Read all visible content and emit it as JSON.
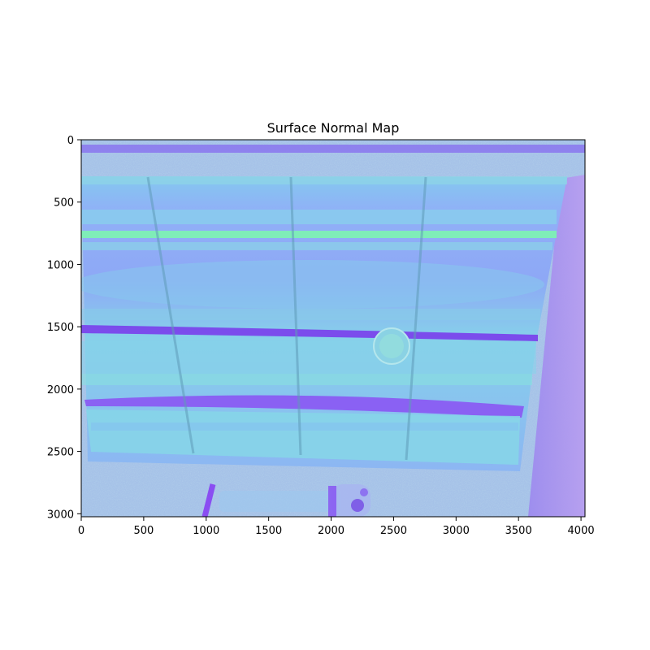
{
  "figure": {
    "title": "Surface Normal Map",
    "image_width_units": 4032,
    "image_height_units": 3024
  },
  "axes": {
    "x_ticks": [
      {
        "value": 0,
        "label": "0"
      },
      {
        "value": 500,
        "label": "500"
      },
      {
        "value": 1000,
        "label": "1000"
      },
      {
        "value": 1500,
        "label": "1500"
      },
      {
        "value": 2000,
        "label": "2000"
      },
      {
        "value": 2500,
        "label": "2500"
      },
      {
        "value": 3000,
        "label": "3000"
      },
      {
        "value": 3500,
        "label": "3500"
      },
      {
        "value": 4000,
        "label": "4000"
      }
    ],
    "y_ticks": [
      {
        "value": 0,
        "label": "0"
      },
      {
        "value": 500,
        "label": "500"
      },
      {
        "value": 1000,
        "label": "1000"
      },
      {
        "value": 1500,
        "label": "1500"
      },
      {
        "value": 2000,
        "label": "2000"
      },
      {
        "value": 2500,
        "label": "2500"
      },
      {
        "value": 3000,
        "label": "3000"
      }
    ]
  },
  "colors": {
    "base_blue": "#8aa6f5",
    "light_band": "#86d6e8",
    "green_band": "#7ef0b4",
    "purple_band": "#7a44ec",
    "violet": "#9a7cf2",
    "noise_bg": "#a8c4ec"
  }
}
